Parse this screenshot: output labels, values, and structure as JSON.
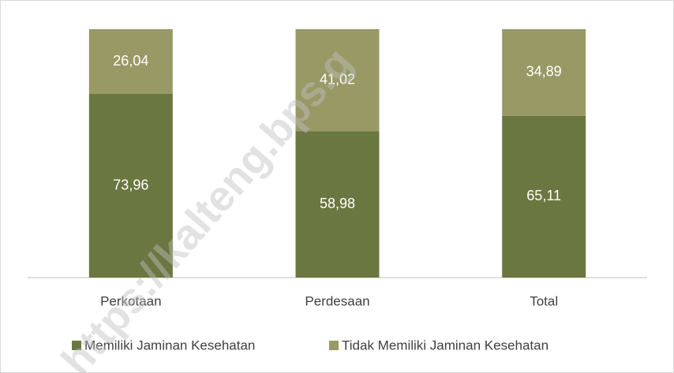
{
  "chart_data": {
    "type": "stacked_bar",
    "categories": [
      "Perkotaan",
      "Perdesaan",
      "Total"
    ],
    "series": [
      {
        "name": "Memiliki Jaminan Kesehatan",
        "color": "#6b7741",
        "values": [
          73.96,
          58.98,
          65.11
        ],
        "value_labels": [
          "73,96",
          "58,98",
          "65,11"
        ]
      },
      {
        "name": "Tidak Memiliki Jaminan Kesehatan",
        "color": "#999966",
        "values": [
          26.04,
          41.02,
          34.89
        ],
        "value_labels": [
          "26,04",
          "41,02",
          "34,89"
        ]
      }
    ],
    "ylim": [
      0,
      100
    ],
    "legend": "bottom",
    "watermark": "https://kalteng.bps.g"
  }
}
